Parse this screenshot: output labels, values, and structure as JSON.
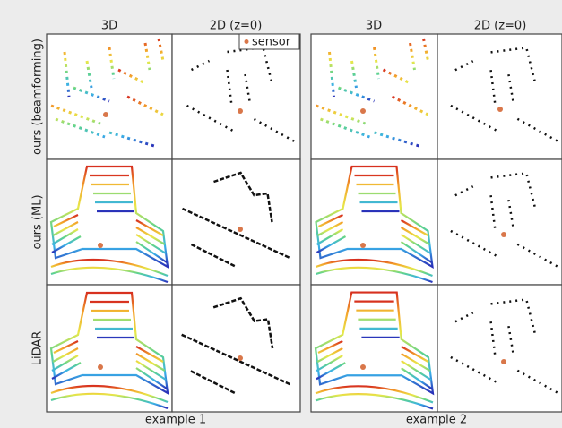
{
  "examples": [
    {
      "caption": "example 1",
      "columns": [
        "3D",
        "2D (z=0)"
      ]
    },
    {
      "caption": "example 2",
      "columns": [
        "3D",
        "2D (z=0)"
      ]
    }
  ],
  "rows": [
    "ours (beamforming)",
    "ours (ML)",
    "LiDAR"
  ],
  "legend": {
    "label": "sensor"
  }
}
